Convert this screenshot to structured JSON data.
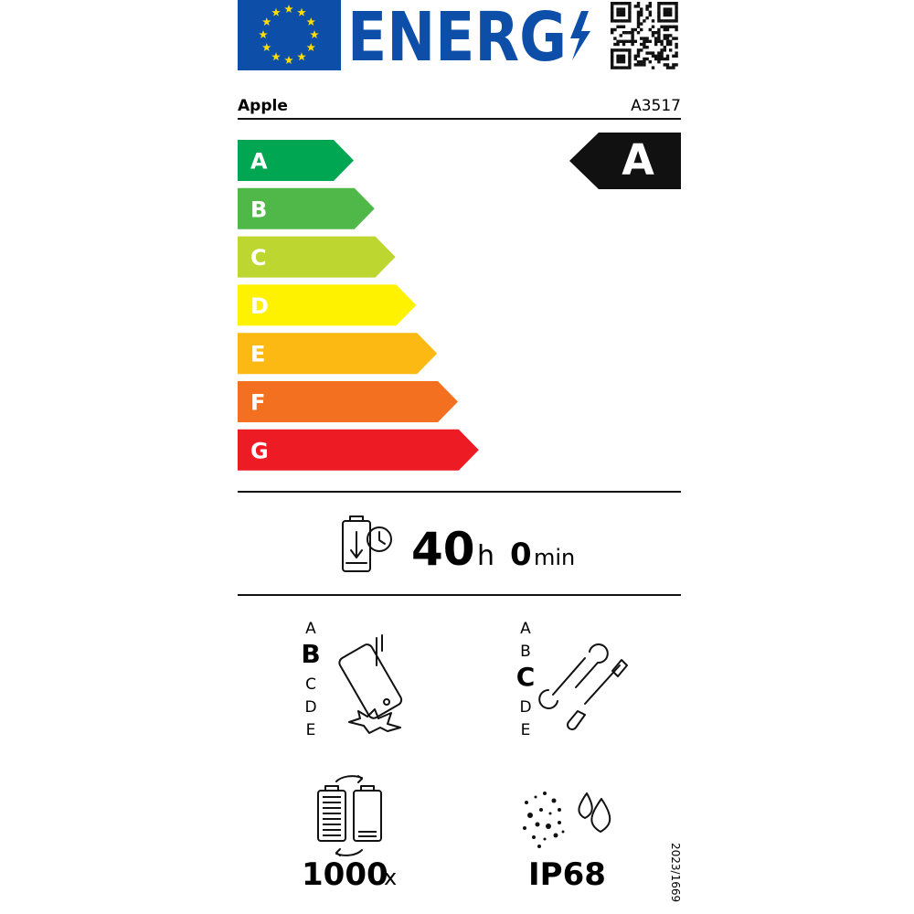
{
  "header": {
    "logo_text": "ENERG",
    "supplier": "Apple",
    "model": "A3517"
  },
  "scale": {
    "classes": [
      "A",
      "B",
      "C",
      "D",
      "E",
      "F",
      "G"
    ],
    "colors": [
      "#00a651",
      "#50b848",
      "#bed630",
      "#fff200",
      "#fdb913",
      "#f37021",
      "#ed1c24"
    ]
  },
  "rating": "A",
  "battery_endurance": {
    "hours": 40,
    "hours_unit": "h",
    "minutes": 0,
    "minutes_unit": "min"
  },
  "drop_class": {
    "classes": [
      "A",
      "B",
      "C",
      "D",
      "E"
    ],
    "selected_index": 1
  },
  "repairability_class": {
    "classes": [
      "A",
      "B",
      "C",
      "D",
      "E"
    ],
    "selected_index": 2
  },
  "battery_cycles": {
    "value": 1000,
    "unit": "x"
  },
  "ingress_protection": "IP68",
  "regulation": "2023/1669"
}
